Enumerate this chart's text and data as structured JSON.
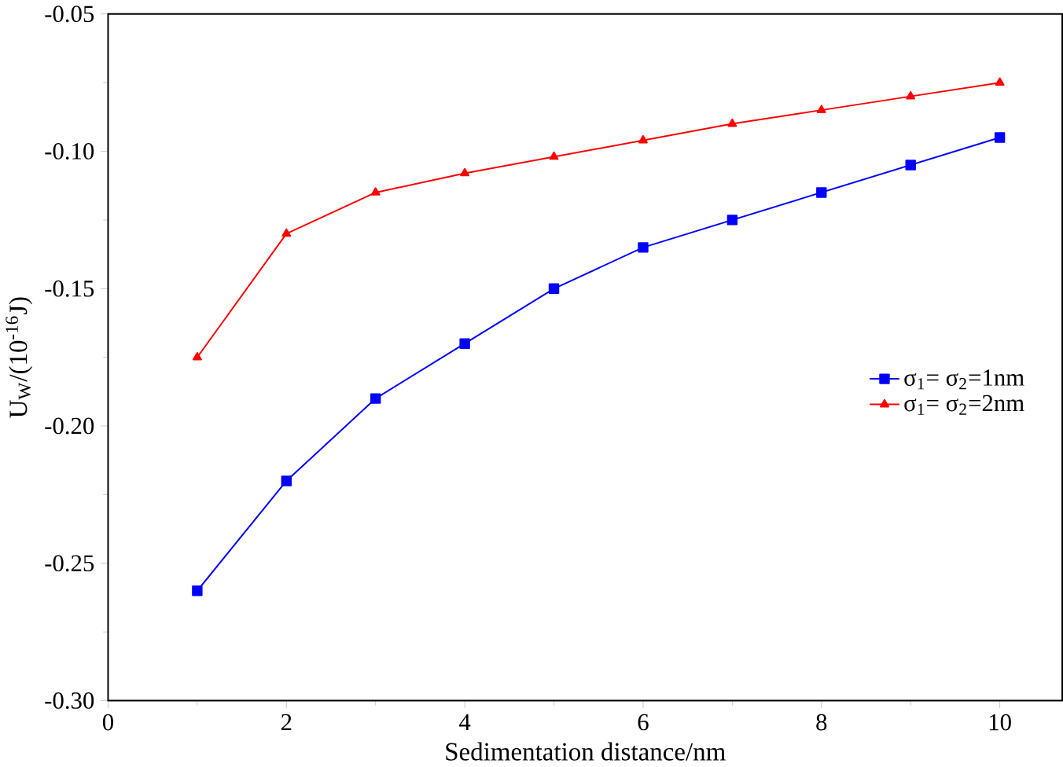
{
  "chart_data": {
    "type": "line",
    "xlabel": "Sedimentation distance/nm",
    "ylabel": "U$_{W}$/(10$^{-16}$J)",
    "x": [
      1,
      2,
      3,
      4,
      5,
      6,
      7,
      8,
      9,
      10
    ],
    "series": [
      {
        "name": "σ$_{1}$= σ$_{2}$=1nm",
        "color": "#0000ff",
        "marker": "square",
        "values": [
          -0.26,
          -0.22,
          -0.19,
          -0.17,
          -0.15,
          -0.135,
          -0.125,
          -0.115,
          -0.105,
          -0.095
        ]
      },
      {
        "name": "σ$_{1}$= σ$_{2}$=2nm",
        "color": "#ff0000",
        "marker": "triangle",
        "values": [
          -0.175,
          -0.13,
          -0.115,
          -0.108,
          -0.102,
          -0.096,
          -0.09,
          -0.085,
          -0.08,
          -0.075
        ]
      }
    ],
    "xlim": [
      0,
      10.7
    ],
    "ylim": [
      -0.3,
      -0.05
    ],
    "xticks": [
      0,
      2,
      4,
      6,
      8,
      10
    ],
    "yticks": [
      {
        "value": -0.3,
        "label": "-0.30"
      },
      {
        "value": -0.25,
        "label": "-0.25"
      },
      {
        "value": -0.2,
        "label": "-0.20"
      },
      {
        "value": -0.15,
        "label": "-0.15"
      },
      {
        "value": -0.1,
        "label": "-0.10"
      },
      {
        "value": -0.05,
        "label": "-0.05"
      }
    ],
    "grid": false,
    "legend": "right",
    "line_style": "solid"
  }
}
